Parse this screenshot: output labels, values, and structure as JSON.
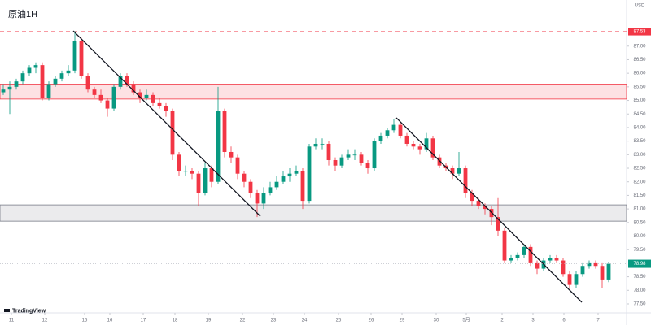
{
  "chart_data": {
    "type": "candlestick",
    "title": "原油1H",
    "currency": "USD",
    "brand": "TradingView",
    "up_color": "#089981",
    "down_color": "#f23645",
    "xlim": [
      -0.5,
      95.75
    ],
    "xticks": [
      {
        "value": 1.25,
        "label": "11"
      },
      {
        "value": 6.375,
        "label": "12"
      },
      {
        "value": 12.5,
        "label": "15"
      },
      {
        "value": 16.375,
        "label": "16"
      },
      {
        "value": 21.5,
        "label": "17"
      },
      {
        "value": 26.375,
        "label": "18"
      },
      {
        "value": 31.5,
        "label": "19"
      },
      {
        "value": 36.75,
        "label": "22"
      },
      {
        "value": 41.5,
        "label": "23"
      },
      {
        "value": 46.25,
        "label": "24"
      },
      {
        "value": 51.5,
        "label": "25"
      },
      {
        "value": 56.5,
        "label": "26"
      },
      {
        "value": 61.25,
        "label": "29"
      },
      {
        "value": 66.5,
        "label": "30"
      },
      {
        "value": 71.125,
        "label": "5月"
      },
      {
        "value": 76.625,
        "label": "2"
      },
      {
        "value": 81.375,
        "label": "3"
      },
      {
        "value": 86.125,
        "label": "6"
      },
      {
        "value": 91.375,
        "label": "7"
      }
    ],
    "ylim": [
      77.17,
      88.7
    ],
    "yticks": [
      {
        "value": 77.5,
        "label": "77.50"
      },
      {
        "value": 78,
        "label": "78.00"
      },
      {
        "value": 78.5,
        "label": "78.50"
      },
      {
        "value": 79.5,
        "label": "79.50"
      },
      {
        "value": 80,
        "label": "80.00"
      },
      {
        "value": 80.5,
        "label": "80.50"
      },
      {
        "value": 81,
        "label": "81.00"
      },
      {
        "value": 81.5,
        "label": "81.50"
      },
      {
        "value": 82,
        "label": "82.00"
      },
      {
        "value": 82.5,
        "label": "82.50"
      },
      {
        "value": 83,
        "label": "83.00"
      },
      {
        "value": 83.5,
        "label": "83.50"
      },
      {
        "value": 84,
        "label": "84.00"
      },
      {
        "value": 84.5,
        "label": "84.50"
      },
      {
        "value": 85,
        "label": "85.00"
      },
      {
        "value": 85.5,
        "label": "85.50"
      },
      {
        "value": 86,
        "label": "86.00"
      },
      {
        "value": 86.5,
        "label": "86.50"
      },
      {
        "value": 87,
        "label": "87.00"
      }
    ],
    "zones": [
      {
        "range": [
          85.05,
          85.6
        ],
        "color": "#f23645"
      },
      {
        "range": [
          80.55,
          81.15
        ],
        "color": "#787b86"
      }
    ],
    "hlines": [
      {
        "value": 87.53,
        "color": "#f23645"
      }
    ],
    "last_price": {
      "value": 78.98,
      "color": "#089981"
    },
    "trendlines": [
      {
        "x": [
          10.75,
          39.5
        ],
        "y": [
          87.56,
          80.73
        ]
      },
      {
        "x": [
          60.375,
          88.875
        ],
        "y": [
          84.36,
          77.56
        ]
      }
    ],
    "candles": [
      [
        85.3,
        85.6,
        85.2,
        85.4
      ],
      [
        85.4,
        85.7,
        84.5,
        85.5
      ],
      [
        85.5,
        85.8,
        85.4,
        85.7
      ],
      [
        85.7,
        86.1,
        85.6,
        86.0
      ],
      [
        86.0,
        86.3,
        85.9,
        86.2
      ],
      [
        86.2,
        86.4,
        86.0,
        86.3
      ],
      [
        86.3,
        86.4,
        85.0,
        85.1
      ],
      [
        85.1,
        85.7,
        85.0,
        85.6
      ],
      [
        85.6,
        85.9,
        85.5,
        85.8
      ],
      [
        85.8,
        86.1,
        85.7,
        86.0
      ],
      [
        86.0,
        86.3,
        85.9,
        86.1
      ],
      [
        86.1,
        87.55,
        86.0,
        87.2
      ],
      [
        87.2,
        87.3,
        85.8,
        85.9
      ],
      [
        85.9,
        86.0,
        85.3,
        85.4
      ],
      [
        85.4,
        85.5,
        85.1,
        85.2
      ],
      [
        85.2,
        85.4,
        84.9,
        85.0
      ],
      [
        85.0,
        85.1,
        84.4,
        84.7
      ],
      [
        84.7,
        85.6,
        84.6,
        85.5
      ],
      [
        85.5,
        86.0,
        85.4,
        85.9
      ],
      [
        85.9,
        86.0,
        85.5,
        85.6
      ],
      [
        85.6,
        85.7,
        85.2,
        85.3
      ],
      [
        85.3,
        85.4,
        84.9,
        85.1
      ],
      [
        85.1,
        85.4,
        85.0,
        85.2
      ],
      [
        85.2,
        85.3,
        84.8,
        84.9
      ],
      [
        84.9,
        85.1,
        84.7,
        84.8
      ],
      [
        84.8,
        84.9,
        84.4,
        84.6
      ],
      [
        84.6,
        84.7,
        82.8,
        83.0
      ],
      [
        83.0,
        83.1,
        82.2,
        82.4
      ],
      [
        82.4,
        82.6,
        82.2,
        82.4
      ],
      [
        82.4,
        82.5,
        82.1,
        82.3
      ],
      [
        82.3,
        82.4,
        81.1,
        81.6
      ],
      [
        81.6,
        82.7,
        81.5,
        82.5
      ],
      [
        82.5,
        82.6,
        81.8,
        82.0
      ],
      [
        82.0,
        85.5,
        81.9,
        84.6
      ],
      [
        84.6,
        84.7,
        82.9,
        83.1
      ],
      [
        83.1,
        83.3,
        82.7,
        82.9
      ],
      [
        82.9,
        83.0,
        82.1,
        82.3
      ],
      [
        82.3,
        82.4,
        81.8,
        82.0
      ],
      [
        82.0,
        82.1,
        81.4,
        81.6
      ],
      [
        81.6,
        81.7,
        80.7,
        81.2
      ],
      [
        81.2,
        81.8,
        81.0,
        81.6
      ],
      [
        81.6,
        82.0,
        81.5,
        81.8
      ],
      [
        81.8,
        82.2,
        81.7,
        82.0
      ],
      [
        82.0,
        82.4,
        81.9,
        82.2
      ],
      [
        82.2,
        82.5,
        82.0,
        82.3
      ],
      [
        82.3,
        82.6,
        82.2,
        82.4
      ],
      [
        82.4,
        82.5,
        81.0,
        81.3
      ],
      [
        81.3,
        83.4,
        81.2,
        83.3
      ],
      [
        83.3,
        83.6,
        83.2,
        83.4
      ],
      [
        83.4,
        83.6,
        83.2,
        83.4
      ],
      [
        83.4,
        83.5,
        82.6,
        82.8
      ],
      [
        82.8,
        82.9,
        82.4,
        82.6
      ],
      [
        82.6,
        83.0,
        82.5,
        82.9
      ],
      [
        82.9,
        83.2,
        82.8,
        83.0
      ],
      [
        83.0,
        83.2,
        82.8,
        83.0
      ],
      [
        83.0,
        83.1,
        82.6,
        82.7
      ],
      [
        82.7,
        82.8,
        82.3,
        82.5
      ],
      [
        82.5,
        83.6,
        82.4,
        83.5
      ],
      [
        83.5,
        83.8,
        83.4,
        83.7
      ],
      [
        83.7,
        84.0,
        83.6,
        83.9
      ],
      [
        83.9,
        84.3,
        83.8,
        84.1
      ],
      [
        84.1,
        84.2,
        83.6,
        83.7
      ],
      [
        83.7,
        83.8,
        83.3,
        83.4
      ],
      [
        83.4,
        83.5,
        83.2,
        83.3
      ],
      [
        83.3,
        83.4,
        83.0,
        83.2
      ],
      [
        83.2,
        83.8,
        83.1,
        83.6
      ],
      [
        83.6,
        83.7,
        82.8,
        82.9
      ],
      [
        82.9,
        83.0,
        82.5,
        82.6
      ],
      [
        82.6,
        82.7,
        82.4,
        82.5
      ],
      [
        82.5,
        82.6,
        82.1,
        82.3
      ],
      [
        82.3,
        83.1,
        82.2,
        82.5
      ],
      [
        82.5,
        82.6,
        81.4,
        81.6
      ],
      [
        81.6,
        81.7,
        81.1,
        81.3
      ],
      [
        81.3,
        81.4,
        81.0,
        81.1
      ],
      [
        81.1,
        81.2,
        80.8,
        81.0
      ],
      [
        81.0,
        81.1,
        80.4,
        80.7
      ],
      [
        80.7,
        81.4,
        80.0,
        80.2
      ],
      [
        80.2,
        80.3,
        79.0,
        79.1
      ],
      [
        79.1,
        79.3,
        79.0,
        79.2
      ],
      [
        79.2,
        79.4,
        79.1,
        79.3
      ],
      [
        79.3,
        79.7,
        79.2,
        79.6
      ],
      [
        79.6,
        79.7,
        78.9,
        79.0
      ],
      [
        79.0,
        79.1,
        78.6,
        78.8
      ],
      [
        78.8,
        79.2,
        78.7,
        79.1
      ],
      [
        79.1,
        79.3,
        79.0,
        79.2
      ],
      [
        79.2,
        79.3,
        79.0,
        79.1
      ],
      [
        79.1,
        79.2,
        78.5,
        78.6
      ],
      [
        78.6,
        78.7,
        78.1,
        78.2
      ],
      [
        78.2,
        78.7,
        78.1,
        78.6
      ],
      [
        78.6,
        79.0,
        78.5,
        78.9
      ],
      [
        78.9,
        79.1,
        78.8,
        79.0
      ],
      [
        79.0,
        79.1,
        78.8,
        78.9
      ],
      [
        78.9,
        79.0,
        78.1,
        78.4
      ],
      [
        78.4,
        79.05,
        78.3,
        78.98
      ]
    ]
  }
}
